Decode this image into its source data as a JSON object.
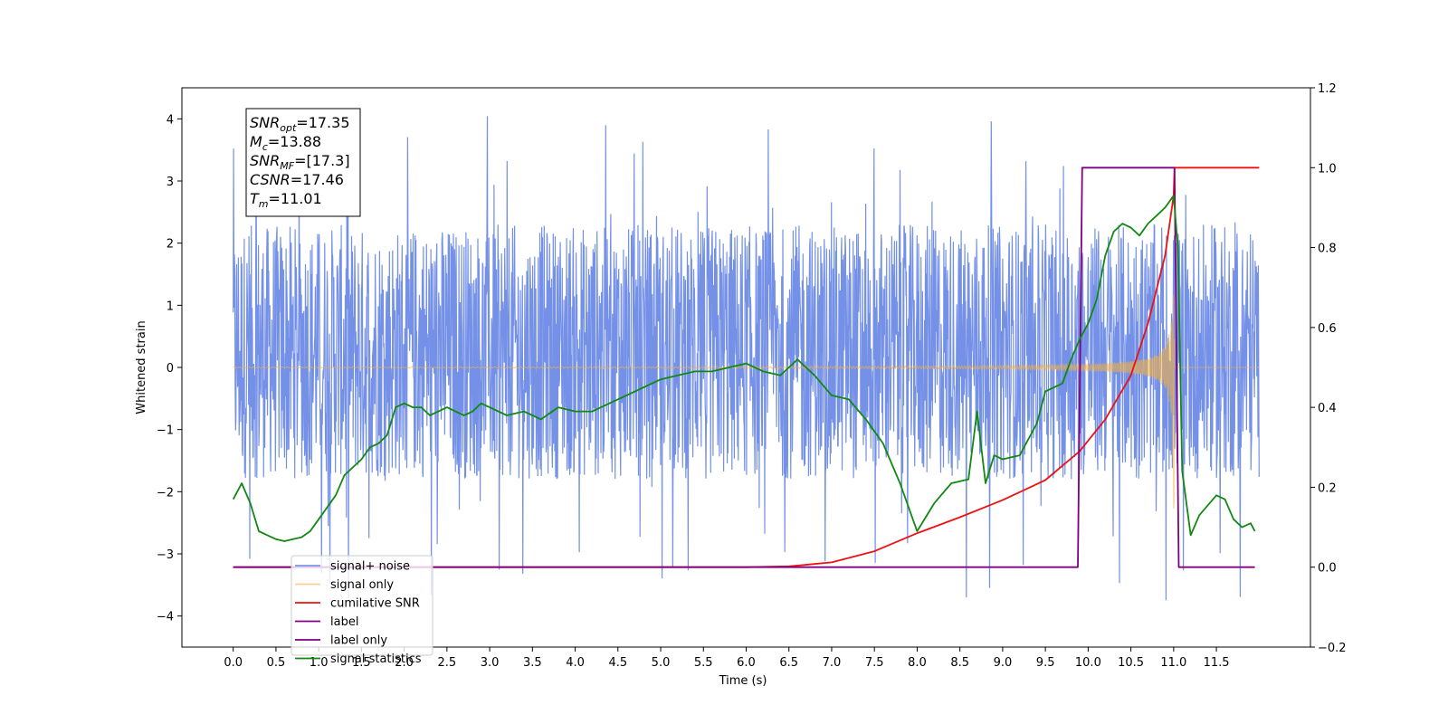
{
  "chart_data": {
    "type": "line",
    "title": "",
    "xlabel": "Time (s)",
    "ylabel": "Whitened strain",
    "xlim": [
      -0.6,
      12.6
    ],
    "ylim": [
      -4.5,
      4.5
    ],
    "y2lim": [
      -0.2,
      1.2
    ],
    "grid": false,
    "legend_position": "lower-left",
    "x_ticks": [
      "0.0",
      "0.5",
      "1.0",
      "1.5",
      "2.0",
      "2.5",
      "3.0",
      "3.5",
      "4.0",
      "4.5",
      "5.0",
      "5.5",
      "6.0",
      "6.5",
      "7.0",
      "7.5",
      "8.0",
      "8.5",
      "9.0",
      "9.5",
      "10.0",
      "10.5",
      "11.0",
      "11.5"
    ],
    "y_ticks": [
      "4",
      "3",
      "2",
      "1",
      "0",
      "−1",
      "−2",
      "−3",
      "−4"
    ],
    "y2_ticks": [
      "1.2",
      "1.0",
      "0.8",
      "0.6",
      "0.4",
      "0.2",
      "0.0",
      "−0.2"
    ],
    "annotation": {
      "lines": [
        {
          "sym": "SNR",
          "sub": "opt",
          "val": "=17.35"
        },
        {
          "sym": "M",
          "sub": "c",
          "val": "=13.88"
        },
        {
          "sym": "SNR",
          "sub": "MF",
          "val": "=[17.3]"
        },
        {
          "sym": "CSNR",
          "sub": "",
          "val": "=17.46"
        },
        {
          "sym": "T",
          "sub": "m",
          "val": "=11.01"
        }
      ]
    },
    "series": [
      {
        "name": "signal+ noise",
        "color": "#6d8be6",
        "axis": "left",
        "kind": "noise",
        "band": [
          -1.8,
          2.3
        ],
        "spikes_max": 4.1,
        "spikes_min": -3.8
      },
      {
        "name": "signal only",
        "color": "#f5b041",
        "axis": "left",
        "kind": "chirp",
        "t_merge": 11.01
      },
      {
        "name": "cumilative SNR",
        "color": "#ee1111",
        "axis": "right",
        "x": [
          0.0,
          6.0,
          6.5,
          7.0,
          7.5,
          8.0,
          8.5,
          9.0,
          9.5,
          9.9,
          10.2,
          10.5,
          10.7,
          10.9,
          11.0,
          11.01,
          11.05,
          12.0
        ],
        "y": [
          0.0,
          0.0,
          0.002,
          0.012,
          0.04,
          0.085,
          0.125,
          0.168,
          0.218,
          0.29,
          0.37,
          0.48,
          0.61,
          0.78,
          0.93,
          1.0,
          1.0,
          1.0
        ]
      },
      {
        "name": "label",
        "color": "#800080",
        "axis": "right",
        "x": [
          0.0,
          9.88,
          9.93,
          11.01,
          11.06,
          11.95
        ],
        "y": [
          0.0,
          0.0,
          1.0,
          1.0,
          0.0,
          0.0
        ]
      },
      {
        "name": "label only",
        "color": "#800080",
        "axis": "right",
        "kind": "legend-only"
      },
      {
        "name": "signal statistics",
        "color": "#118811",
        "axis": "right",
        "x": [
          0.0,
          0.1,
          0.2,
          0.3,
          0.4,
          0.5,
          0.6,
          0.7,
          0.8,
          0.9,
          1.0,
          1.1,
          1.2,
          1.3,
          1.4,
          1.5,
          1.6,
          1.7,
          1.8,
          1.9,
          2.0,
          2.1,
          2.2,
          2.3,
          2.4,
          2.5,
          2.6,
          2.7,
          2.8,
          2.9,
          3.0,
          3.2,
          3.4,
          3.6,
          3.8,
          4.0,
          4.2,
          4.4,
          4.6,
          4.8,
          5.0,
          5.2,
          5.4,
          5.6,
          5.8,
          6.0,
          6.2,
          6.4,
          6.5,
          6.6,
          6.7,
          6.8,
          7.0,
          7.2,
          7.4,
          7.6,
          7.8,
          8.0,
          8.2,
          8.4,
          8.6,
          8.7,
          8.8,
          8.9,
          9.0,
          9.2,
          9.4,
          9.5,
          9.6,
          9.7,
          9.8,
          9.9,
          10.0,
          10.1,
          10.2,
          10.3,
          10.4,
          10.5,
          10.6,
          10.7,
          10.8,
          10.9,
          11.0,
          11.05,
          11.1,
          11.2,
          11.3,
          11.5,
          11.6,
          11.7,
          11.8,
          11.9,
          11.95
        ],
        "y": [
          0.17,
          0.21,
          0.16,
          0.09,
          0.08,
          0.07,
          0.065,
          0.07,
          0.075,
          0.09,
          0.12,
          0.15,
          0.18,
          0.23,
          0.25,
          0.27,
          0.3,
          0.31,
          0.33,
          0.4,
          0.41,
          0.4,
          0.4,
          0.38,
          0.39,
          0.4,
          0.39,
          0.38,
          0.39,
          0.41,
          0.4,
          0.38,
          0.39,
          0.37,
          0.4,
          0.39,
          0.39,
          0.41,
          0.43,
          0.45,
          0.47,
          0.48,
          0.49,
          0.49,
          0.5,
          0.51,
          0.49,
          0.48,
          0.5,
          0.52,
          0.5,
          0.48,
          0.43,
          0.42,
          0.37,
          0.31,
          0.21,
          0.09,
          0.16,
          0.21,
          0.22,
          0.39,
          0.21,
          0.28,
          0.27,
          0.28,
          0.36,
          0.44,
          0.45,
          0.46,
          0.52,
          0.57,
          0.61,
          0.67,
          0.78,
          0.84,
          0.86,
          0.85,
          0.83,
          0.86,
          0.88,
          0.9,
          0.93,
          0.8,
          0.24,
          0.08,
          0.13,
          0.18,
          0.17,
          0.12,
          0.1,
          0.11,
          0.09
        ]
      }
    ]
  }
}
